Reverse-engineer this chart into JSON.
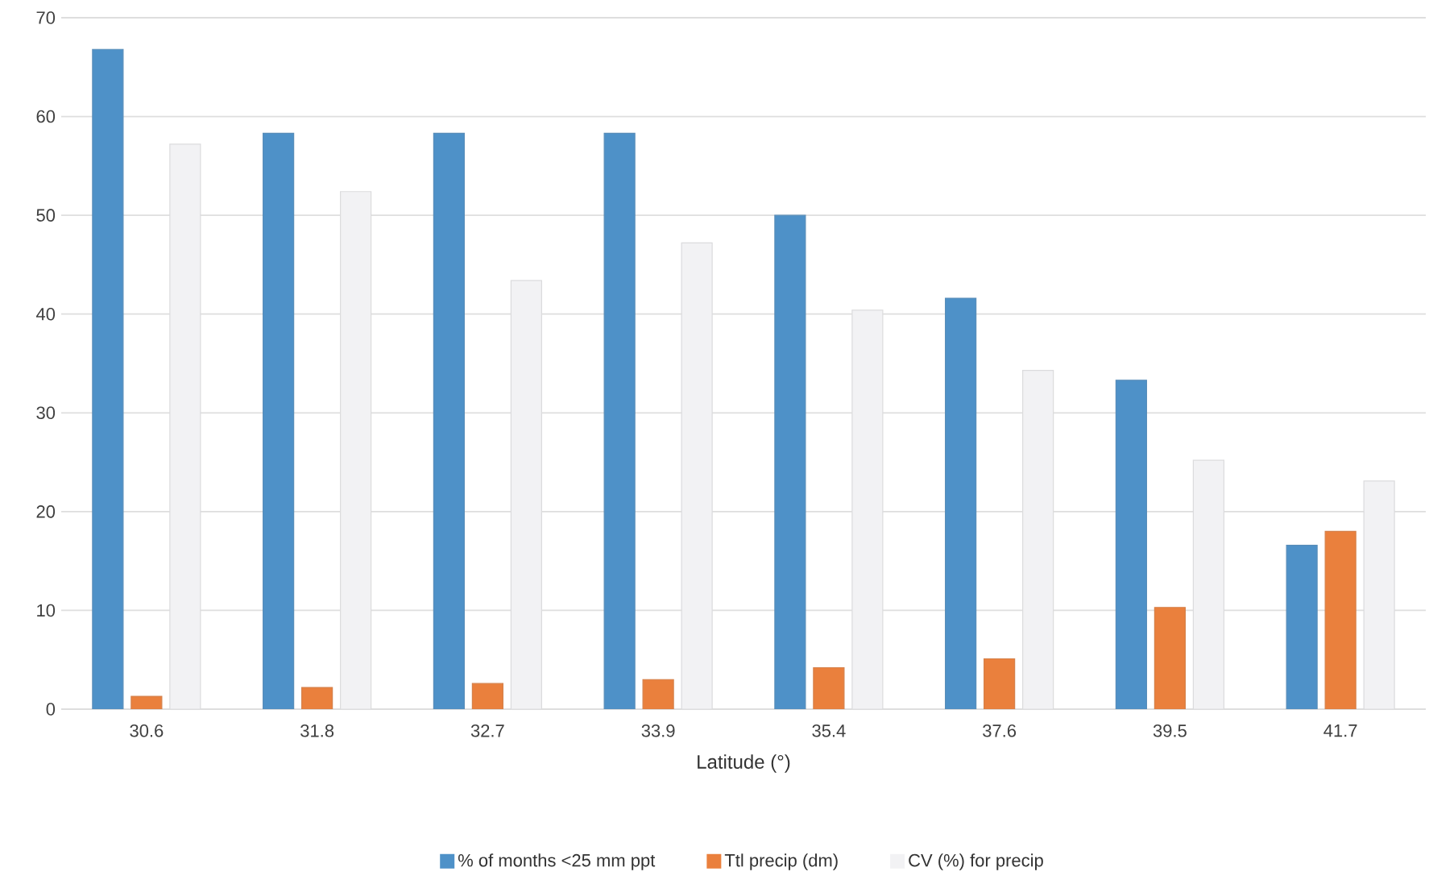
{
  "chart_data": {
    "type": "bar",
    "xlabel": "Latitude (°)",
    "categories": [
      "30.6",
      "31.8",
      "32.7",
      "33.9",
      "35.4",
      "37.6",
      "39.5",
      "41.7"
    ],
    "series": [
      {
        "name": "% of months <25 mm ppt",
        "color": "#4e91c8",
        "values": [
          66.8,
          58.3,
          58.3,
          58.3,
          50.0,
          41.6,
          33.3,
          16.6
        ]
      },
      {
        "name": "Ttl precip (dm)",
        "color": "#ea803d",
        "values": [
          1.3,
          2.2,
          2.6,
          3.0,
          4.2,
          5.1,
          10.3,
          18.0
        ]
      },
      {
        "name": "CV (%) for precip",
        "color": "#f2f2f4",
        "values": [
          57.2,
          52.4,
          43.4,
          47.2,
          40.4,
          34.3,
          25.2,
          23.1
        ]
      }
    ],
    "ylim": [
      0,
      70
    ],
    "yticks": [
      0,
      10,
      20,
      30,
      40,
      50,
      60,
      70
    ],
    "grid": "y",
    "legend": "bottom"
  }
}
